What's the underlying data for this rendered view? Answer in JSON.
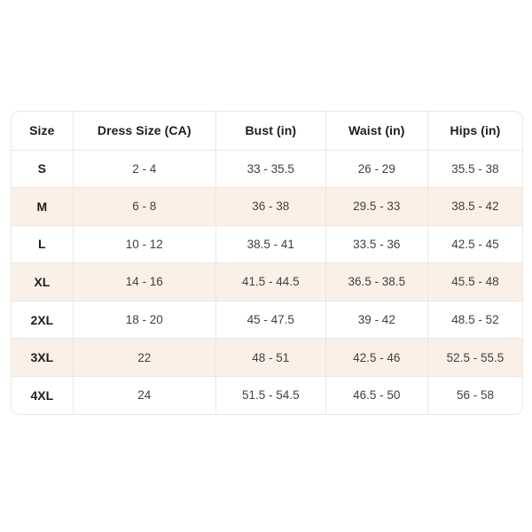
{
  "theme": {
    "shaded_row_bg": "#fbf0e7",
    "border_color": "#e9e8e6",
    "header_text_color": "#1d1d1d",
    "cell_text_color": "#3f3f3f",
    "page_background": "#ffffff"
  },
  "table": {
    "headers": [
      "Size",
      "Dress Size (CA)",
      "Bust (in)",
      "Waist (in)",
      "Hips (in)"
    ],
    "rows": [
      [
        "S",
        "2 - 4",
        "33 - 35.5",
        "26 - 29",
        "35.5 - 38"
      ],
      [
        "M",
        "6 - 8",
        "36 - 38",
        "29.5 - 33",
        "38.5 - 42"
      ],
      [
        "L",
        "10 - 12",
        "38.5 - 41",
        "33.5 - 36",
        "42.5 - 45"
      ],
      [
        "XL",
        "14 - 16",
        "41.5 - 44.5",
        "36.5 - 38.5",
        "45.5 - 48"
      ],
      [
        "2XL",
        "18 - 20",
        "45 - 47.5",
        "39 - 42",
        "48.5 - 52"
      ],
      [
        "3XL",
        "22",
        "48 - 51",
        "42.5 - 46",
        "52.5 - 55.5"
      ],
      [
        "4XL",
        "24",
        "51.5 - 54.5",
        "46.5 - 50",
        "56 - 58"
      ]
    ],
    "shaded_row_indices": [
      1,
      3,
      5
    ]
  }
}
